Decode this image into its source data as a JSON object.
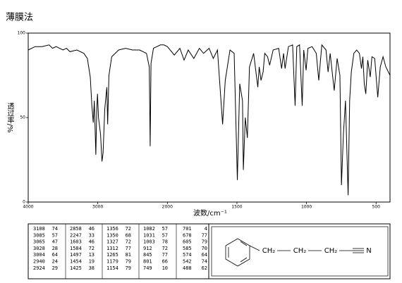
{
  "title": "薄膜法",
  "chart_data": {
    "type": "line",
    "color": "#000000",
    "x_label": "波数/cm⁻¹",
    "y_label": "透过率/%",
    "xlim": [
      4000,
      400
    ],
    "xticks": [
      4000,
      3000,
      2000,
      1500,
      1000,
      500
    ],
    "ylim": [
      0,
      100
    ],
    "yticks": [
      0,
      50,
      100
    ],
    "x": [
      4000,
      3900,
      3800,
      3700,
      3650,
      3600,
      3500,
      3450,
      3400,
      3300,
      3200,
      3150,
      3108,
      3085,
      3065,
      3050,
      3028,
      3015,
      3004,
      2990,
      2960,
      2940,
      2924,
      2900,
      2870,
      2858,
      2840,
      2800,
      2700,
      2600,
      2500,
      2400,
      2300,
      2260,
      2247,
      2235,
      2200,
      2100,
      2050,
      2000,
      1950,
      1910,
      1880,
      1850,
      1810,
      1770,
      1740,
      1700,
      1670,
      1640,
      1603,
      1584,
      1550,
      1520,
      1497,
      1480,
      1460,
      1454,
      1440,
      1425,
      1410,
      1380,
      1356,
      1350,
      1340,
      1327,
      1312,
      1300,
      1280,
      1265,
      1240,
      1200,
      1179,
      1165,
      1154,
      1130,
      1100,
      1082,
      1070,
      1050,
      1031,
      1020,
      1003,
      990,
      960,
      930,
      912,
      890,
      860,
      845,
      830,
      801,
      780,
      760,
      749,
      735,
      720,
      701,
      690,
      678,
      660,
      640,
      620,
      605,
      595,
      585,
      574,
      560,
      542,
      530,
      510,
      488,
      470,
      450,
      430,
      400
    ],
    "values": [
      90,
      92,
      92,
      93,
      91,
      92,
      90,
      91,
      89,
      90,
      88,
      85,
      74,
      57,
      47,
      60,
      28,
      55,
      64,
      50,
      40,
      24,
      29,
      55,
      68,
      46,
      75,
      86,
      90,
      91,
      90,
      90,
      88,
      80,
      33,
      82,
      91,
      93,
      93,
      92,
      87,
      91,
      84,
      90,
      85,
      91,
      88,
      91,
      85,
      90,
      46,
      72,
      90,
      88,
      13,
      70,
      60,
      19,
      50,
      38,
      80,
      88,
      72,
      68,
      80,
      72,
      77,
      88,
      86,
      81,
      90,
      91,
      79,
      88,
      79,
      92,
      93,
      57,
      92,
      93,
      57,
      90,
      78,
      91,
      92,
      88,
      72,
      93,
      90,
      77,
      88,
      66,
      85,
      75,
      10,
      40,
      60,
      4,
      60,
      77,
      88,
      90,
      88,
      79,
      86,
      70,
      64,
      84,
      74,
      86,
      85,
      62,
      80,
      86,
      80,
      75
    ]
  },
  "peak_table": [
    [
      3108,
      74
    ],
    [
      3085,
      57
    ],
    [
      3065,
      47
    ],
    [
      3028,
      28
    ],
    [
      3004,
      64
    ],
    [
      2940,
      24
    ],
    [
      2924,
      29
    ],
    [
      2858,
      46
    ],
    [
      2247,
      33
    ],
    [
      1603,
      46
    ],
    [
      1584,
      72
    ],
    [
      1497,
      13
    ],
    [
      1454,
      19
    ],
    [
      1425,
      38
    ],
    [
      1356,
      72
    ],
    [
      1350,
      68
    ],
    [
      1327,
      72
    ],
    [
      1312,
      77
    ],
    [
      1265,
      81
    ],
    [
      1179,
      79
    ],
    [
      1154,
      79
    ],
    [
      1082,
      57
    ],
    [
      1031,
      57
    ],
    [
      1003,
      78
    ],
    [
      912,
      72
    ],
    [
      845,
      77
    ],
    [
      801,
      66
    ],
    [
      749,
      10
    ],
    [
      701,
      4
    ],
    [
      678,
      77
    ],
    [
      605,
      79
    ],
    [
      585,
      70
    ],
    [
      574,
      64
    ],
    [
      542,
      74
    ],
    [
      488,
      62
    ]
  ],
  "structure": {
    "groups": [
      "CH₂",
      "CH₂",
      "CH₂",
      "N"
    ]
  }
}
